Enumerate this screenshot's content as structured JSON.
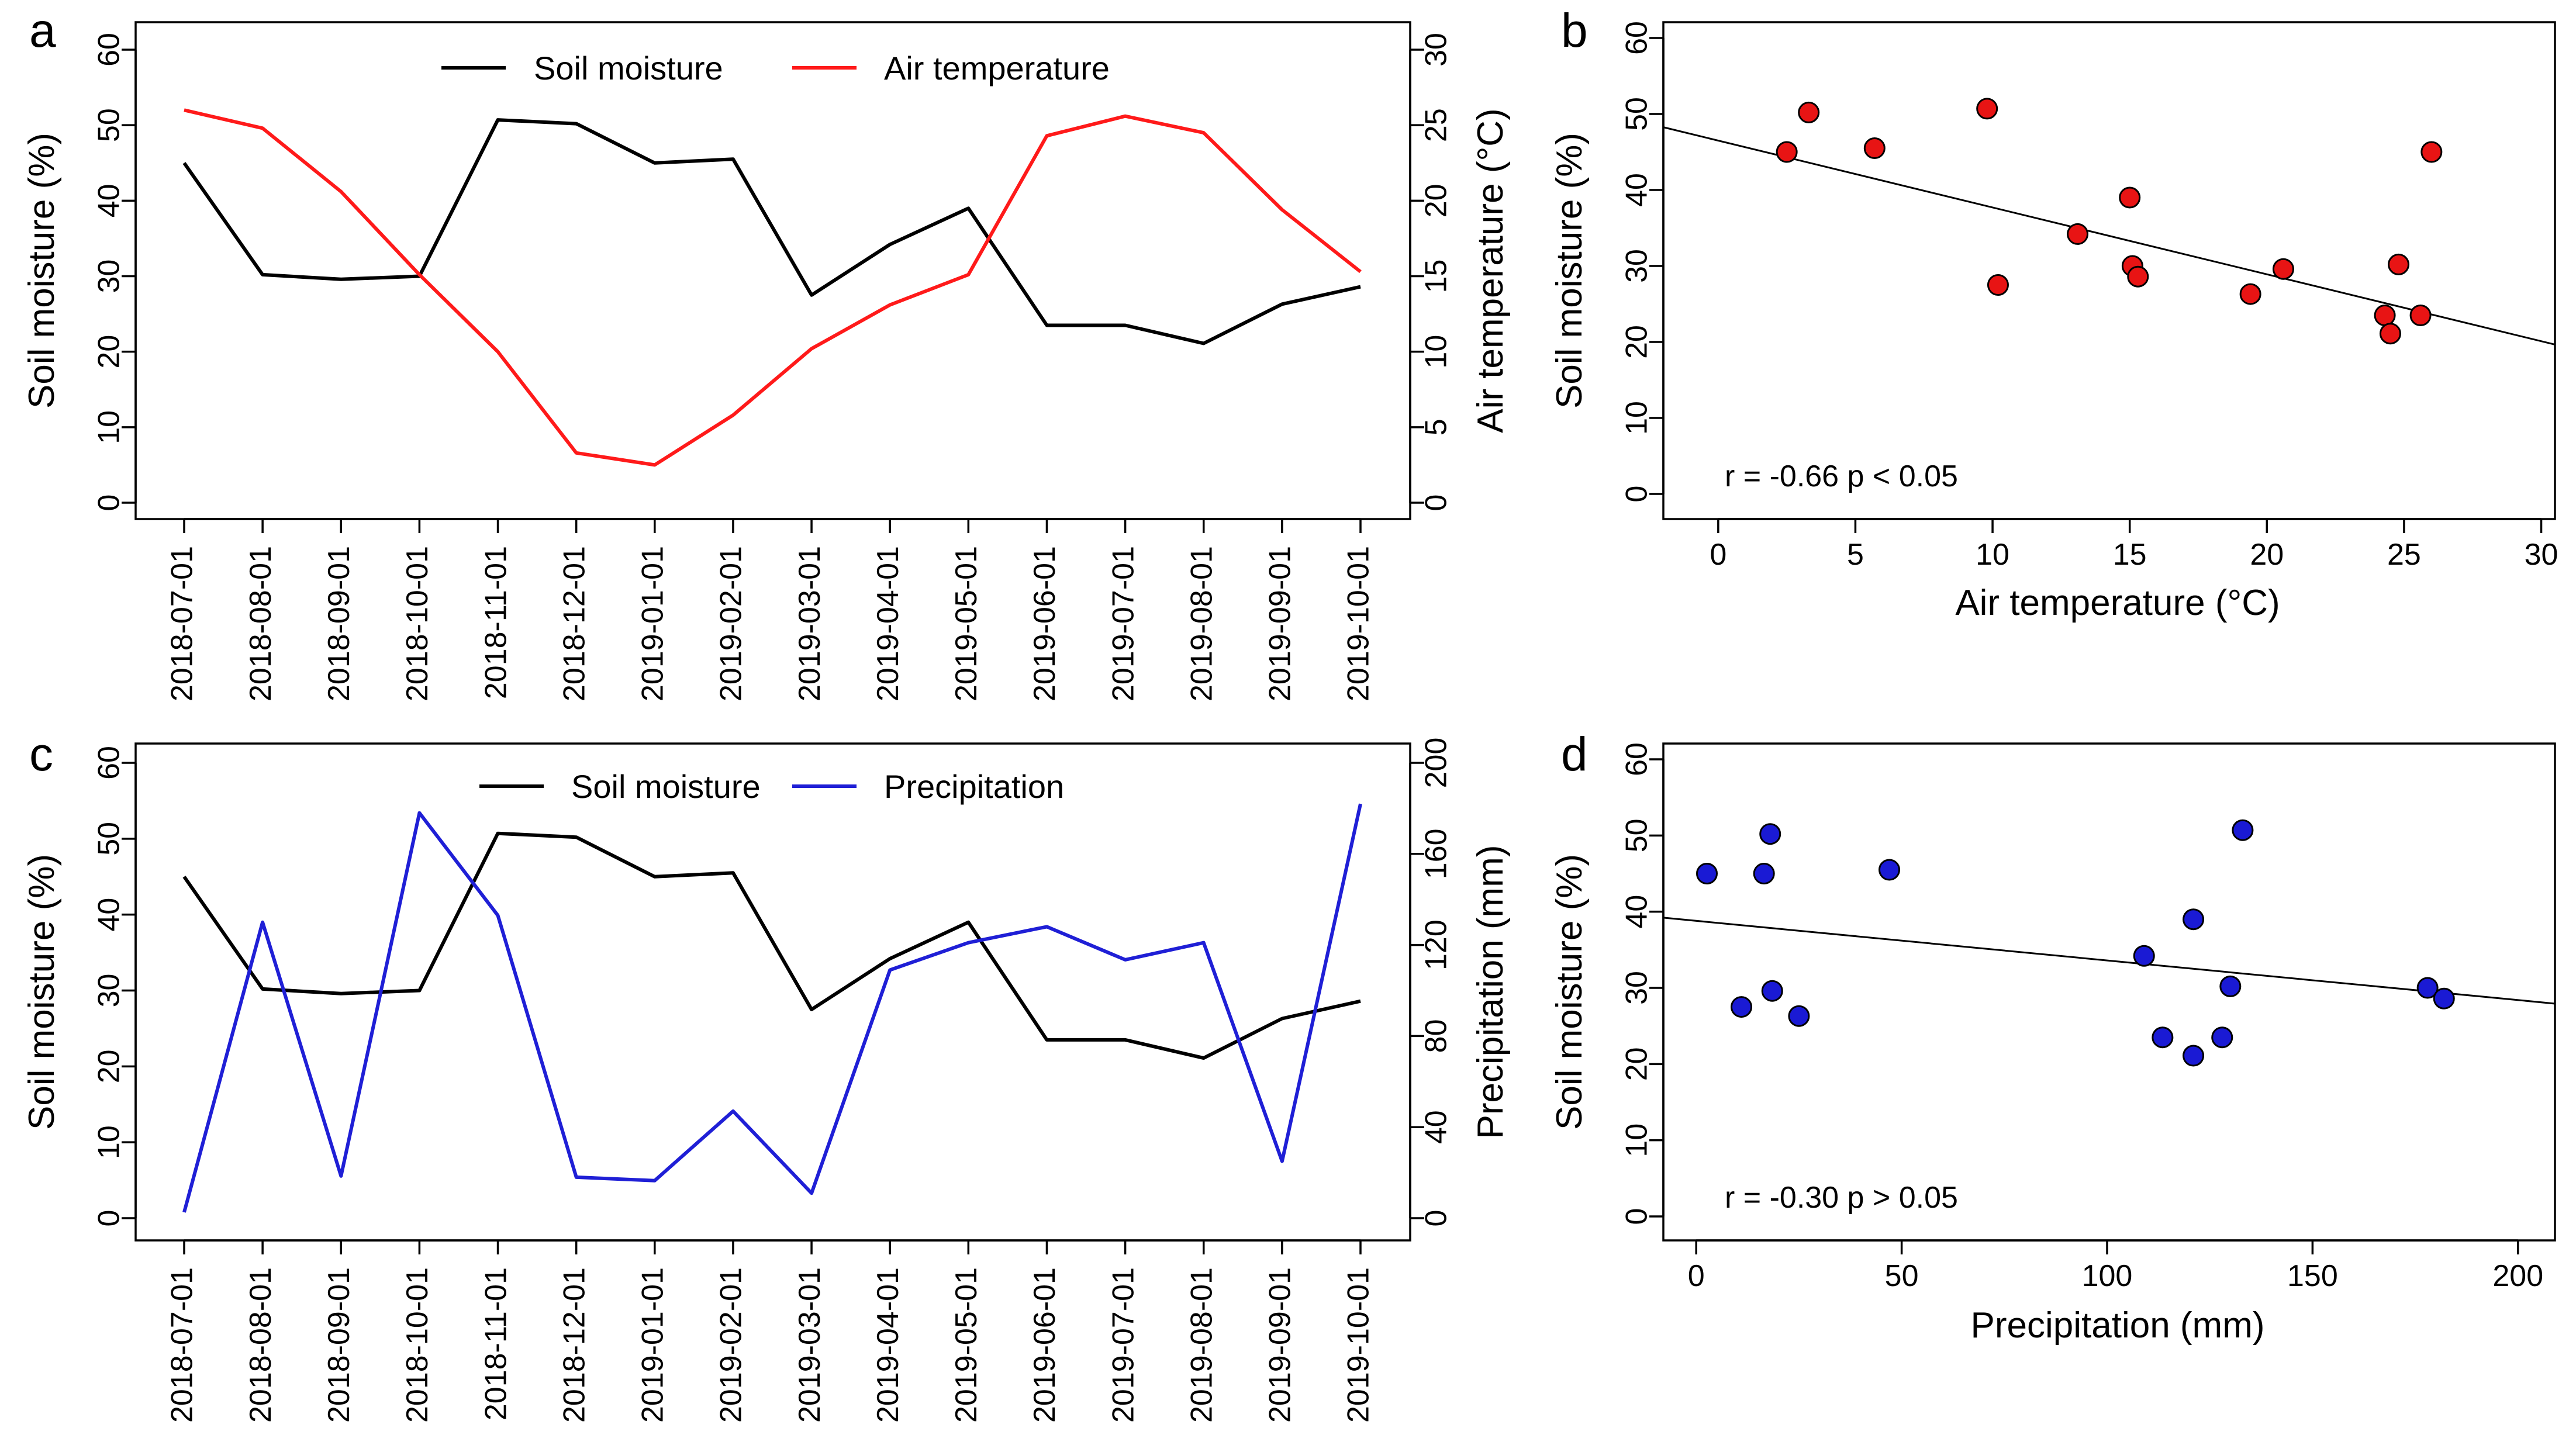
{
  "colors": {
    "soil": "#000000",
    "temp": "#ff1a1a",
    "precip": "#1f1fd6",
    "temp_point": "#e81414",
    "precip_point": "#1a1ad4"
  },
  "chart_data": [
    {
      "id": "a",
      "type": "line",
      "panel_label": "a",
      "dates": [
        "2018-07-01",
        "2018-08-01",
        "2018-09-01",
        "2018-10-01",
        "2018-11-01",
        "2018-12-01",
        "2019-01-01",
        "2019-02-01",
        "2019-03-01",
        "2019-04-01",
        "2019-05-01",
        "2019-06-01",
        "2019-07-01",
        "2019-08-01",
        "2019-09-01",
        "2019-10-01"
      ],
      "ylabel": "Soil moisture (%)",
      "ylabel2": "Air temperature (°C)",
      "ylim": [
        0,
        60
      ],
      "yticks": [
        0,
        10,
        20,
        30,
        40,
        50,
        60
      ],
      "ylim2": [
        0,
        30
      ],
      "yticks2": [
        0,
        5,
        10,
        15,
        20,
        25,
        30
      ],
      "series": [
        {
          "name": "Soil moisture",
          "axis": "left",
          "color": "#000000",
          "values": [
            45.0,
            30.2,
            29.6,
            30.0,
            50.7,
            50.2,
            45.0,
            45.5,
            27.5,
            34.2,
            39.0,
            23.5,
            23.5,
            21.1,
            26.3,
            28.6
          ]
        },
        {
          "name": "Air temperature",
          "axis": "right",
          "color": "#ff1a1a",
          "values": [
            26.0,
            24.8,
            20.6,
            15.1,
            10.0,
            3.3,
            2.5,
            5.8,
            10.2,
            13.1,
            15.1,
            24.3,
            25.6,
            24.5,
            19.4,
            15.3
          ]
        }
      ]
    },
    {
      "id": "b",
      "type": "scatter",
      "panel_label": "b",
      "xlabel": "Air temperature (°C)",
      "ylabel": "Soil moisture (%)",
      "xlim": [
        -2,
        30.5
      ],
      "xticks": [
        0,
        5,
        10,
        15,
        20,
        25,
        30
      ],
      "ylim": [
        0,
        60
      ],
      "yticks": [
        0,
        10,
        20,
        30,
        40,
        50,
        60
      ],
      "annotation": "r = -0.66 p < 0.05",
      "fit": {
        "slope": -0.88,
        "intercept": 46.5
      },
      "point_color": "#e81414",
      "points": [
        [
          2.5,
          45.0
        ],
        [
          3.3,
          50.2
        ],
        [
          5.7,
          45.5
        ],
        [
          9.8,
          50.7
        ],
        [
          10.2,
          27.5
        ],
        [
          13.1,
          34.2
        ],
        [
          15.0,
          39.0
        ],
        [
          15.1,
          30.0
        ],
        [
          15.3,
          28.6
        ],
        [
          19.4,
          26.3
        ],
        [
          20.6,
          29.6
        ],
        [
          24.3,
          23.5
        ],
        [
          24.5,
          21.1
        ],
        [
          24.8,
          30.2
        ],
        [
          25.6,
          23.5
        ],
        [
          26.0,
          45.0
        ]
      ]
    },
    {
      "id": "c",
      "type": "line",
      "panel_label": "c",
      "dates": [
        "2018-07-01",
        "2018-08-01",
        "2018-09-01",
        "2018-10-01",
        "2018-11-01",
        "2018-12-01",
        "2019-01-01",
        "2019-02-01",
        "2019-03-01",
        "2019-04-01",
        "2019-05-01",
        "2019-06-01",
        "2019-07-01",
        "2019-08-01",
        "2019-09-01",
        "2019-10-01"
      ],
      "ylabel": "Soil moisture (%)",
      "ylabel2": "Precipitation (mm)",
      "ylim": [
        0,
        60
      ],
      "yticks": [
        0,
        10,
        20,
        30,
        40,
        50,
        60
      ],
      "ylim2": [
        0,
        200
      ],
      "yticks2": [
        0,
        40,
        80,
        120,
        160,
        200
      ],
      "series": [
        {
          "name": "Soil moisture",
          "axis": "left",
          "color": "#000000",
          "values": [
            45.0,
            30.2,
            29.6,
            30.0,
            50.7,
            50.2,
            45.0,
            45.5,
            27.5,
            34.2,
            39.0,
            23.5,
            23.5,
            21.1,
            26.3,
            28.6
          ]
        },
        {
          "name": "Precipitation",
          "axis": "right",
          "color": "#1f1fd6",
          "values": [
            2.6,
            130.0,
            18.5,
            178.0,
            133.0,
            18.0,
            16.5,
            47.0,
            11.0,
            109.0,
            121.0,
            128.0,
            113.5,
            121.0,
            25.0,
            182.0
          ]
        }
      ]
    },
    {
      "id": "d",
      "type": "scatter",
      "panel_label": "d",
      "xlabel": "Precipitation (mm)",
      "ylabel": "Soil moisture (%)",
      "xlim": [
        -8,
        209
      ],
      "xticks": [
        0,
        50,
        100,
        150,
        200
      ],
      "ylim": [
        0,
        60
      ],
      "yticks": [
        0,
        10,
        20,
        30,
        40,
        50,
        60
      ],
      "annotation": "r = -0.30 p > 0.05",
      "fit": {
        "slope": -0.052,
        "intercept": 38.8
      },
      "point_color": "#1a1ad4",
      "points": [
        [
          2.6,
          45.0
        ],
        [
          11.0,
          27.5
        ],
        [
          16.5,
          45.0
        ],
        [
          18.0,
          50.2
        ],
        [
          18.5,
          29.6
        ],
        [
          25.0,
          26.3
        ],
        [
          47.0,
          45.5
        ],
        [
          109.0,
          34.2
        ],
        [
          113.5,
          23.5
        ],
        [
          121.0,
          21.1
        ],
        [
          121.0,
          39.0
        ],
        [
          128.0,
          23.5
        ],
        [
          130.0,
          30.2
        ],
        [
          133.0,
          50.7
        ],
        [
          178.0,
          30.0
        ],
        [
          182.0,
          28.6
        ]
      ]
    }
  ]
}
